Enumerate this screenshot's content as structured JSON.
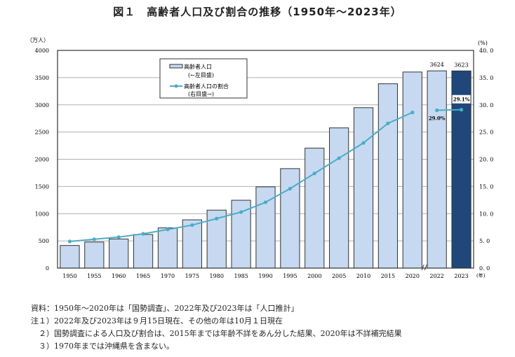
{
  "chart_data": {
    "type": "bar+line",
    "title": "図１　高齢者人口及び割合の推移（1950年～2023年）",
    "ylabel_left": "（万人）",
    "ylabel_right": "(%)",
    "xlabel": "(年)",
    "ylim_left": [
      0,
      4000
    ],
    "ylim_right": [
      0,
      40
    ],
    "yticks_left": [
      "0",
      "500",
      "1000",
      "1500",
      "2000",
      "2500",
      "3000",
      "3500",
      "4000"
    ],
    "yticks_right": [
      "0.0",
      "5.0",
      "10.0",
      "15.0",
      "20.0",
      "25.0",
      "30.0",
      "35.0",
      "40.0"
    ],
    "grid": true,
    "categories": [
      "1950",
      "1955",
      "1960",
      "1965",
      "1970",
      "1975",
      "1980",
      "1985",
      "1990",
      "1995",
      "2000",
      "2005",
      "2010",
      "2015",
      "2020",
      "2022",
      "2023"
    ],
    "series": [
      {
        "name": "高齢者人口",
        "sub": "(←左目盛)",
        "type": "bar",
        "values": [
          416,
          479,
          535,
          618,
          739,
          887,
          1065,
          1247,
          1493,
          1828,
          2204,
          2576,
          2948,
          3387,
          3603,
          3624,
          3623
        ],
        "color": "#c6d9f1",
        "highlight_color": "#1f477a"
      },
      {
        "name": "高齢者人口の割合",
        "sub": "(右目盛→)",
        "type": "line",
        "values": [
          4.9,
          5.3,
          5.7,
          6.3,
          7.1,
          7.9,
          9.1,
          10.3,
          12.1,
          14.6,
          17.4,
          20.2,
          23.0,
          26.6,
          28.6,
          29.0,
          29.1
        ],
        "color": "#4bacc6"
      }
    ],
    "data_labels": {
      "bar_2022": "3624",
      "bar_2023": "3623",
      "ratio_2022": "29.0%",
      "ratio_2023": "29.1%"
    },
    "legend_placement": "top-center"
  },
  "notes": [
    "資料：1950年～2020年は「国勢調査」、2022年及び2023年は「人口推計」",
    "注１）2022年及び2023年は９月15日現在、その他の年は10月１日現在",
    "　２）国勢調査による人口及び割合は、2015年までは年齢不詳をあん分した結果、2020年は不詳補完結果",
    "　３）1970年までは沖縄県を含まない。"
  ]
}
